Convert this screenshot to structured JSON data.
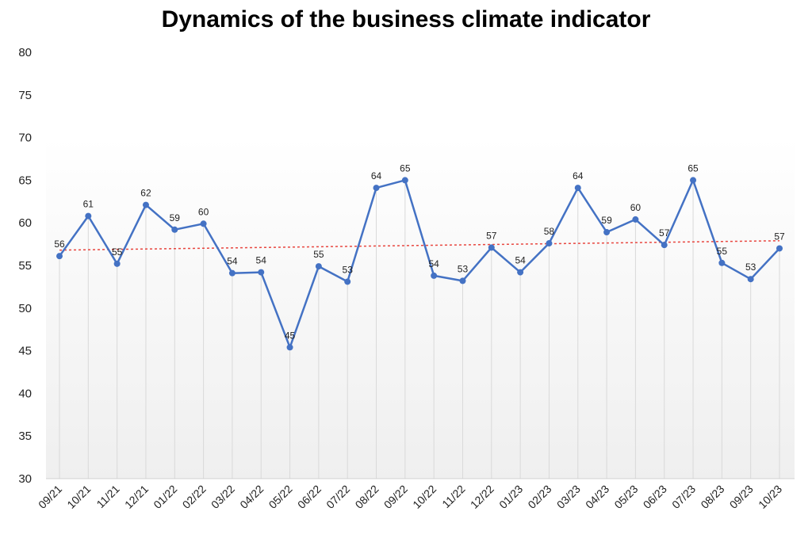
{
  "chart_data": {
    "type": "line",
    "title": "Dynamics of the business climate indicator",
    "xlabel": "",
    "ylabel": "",
    "ylim": [
      30,
      80
    ],
    "yticks": [
      30,
      35,
      40,
      45,
      50,
      55,
      60,
      65,
      70,
      75,
      80
    ],
    "categories": [
      "09/21",
      "10/21",
      "11/21",
      "12/21",
      "01/22",
      "02/22",
      "03/22",
      "04/22",
      "05/22",
      "06/22",
      "07/22",
      "08/22",
      "09/22",
      "10/22",
      "11/22",
      "12/22",
      "01/23",
      "02/23",
      "03/23",
      "04/23",
      "05/23",
      "06/23",
      "07/23",
      "08/23",
      "09/23",
      "10/23"
    ],
    "series": [
      {
        "values": [
          56.1,
          60.8,
          55.2,
          62.1,
          59.2,
          59.9,
          54.1,
          54.2,
          45.4,
          54.9,
          53.1,
          64.1,
          65.0,
          53.8,
          53.2,
          57.1,
          54.2,
          57.6,
          64.1,
          58.9,
          60.4,
          57.4,
          65.0,
          55.3,
          53.4,
          57.0
        ],
        "labels": [
          "56",
          "61",
          "55",
          "62",
          "59",
          "60",
          "54",
          "54",
          "45",
          "55",
          "53",
          "64",
          "65",
          "54",
          "53",
          "57",
          "54",
          "58",
          "64",
          "59",
          "60",
          "57",
          "65",
          "55",
          "53",
          "57"
        ],
        "color": "#4472c4"
      }
    ],
    "trendline": {
      "start": 56.8,
      "end": 57.9,
      "color": "#e8463f",
      "style": "dotted"
    },
    "grid": {
      "vertical_droplines": true,
      "horizontal": false
    },
    "legend": "none",
    "background_gradient": [
      "#ffffff",
      "#efefef"
    ]
  }
}
